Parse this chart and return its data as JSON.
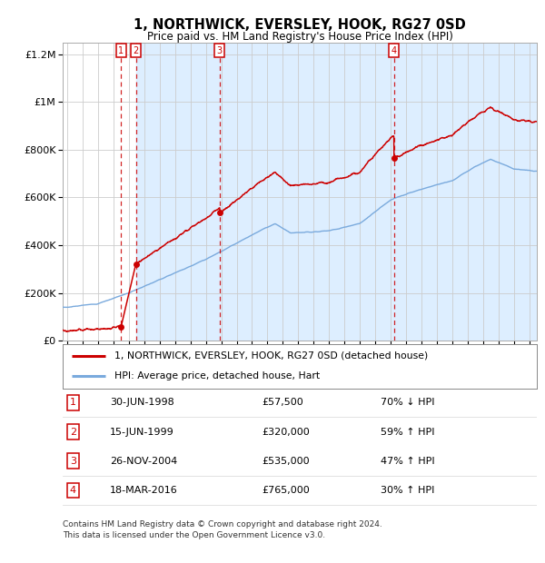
{
  "title": "1, NORTHWICK, EVERSLEY, HOOK, RG27 0SD",
  "subtitle": "Price paid vs. HM Land Registry's House Price Index (HPI)",
  "property_label": "1, NORTHWICK, EVERSLEY, HOOK, RG27 0SD (detached house)",
  "hpi_label": "HPI: Average price, detached house, Hart",
  "sale_points": [
    {
      "num": 1,
      "date_val": 1998.49,
      "price": 57500,
      "label": "30-JUN-1998",
      "price_str": "£57,500",
      "hpi_rel": "70% ↓ HPI"
    },
    {
      "num": 2,
      "date_val": 1999.45,
      "price": 320000,
      "label": "15-JUN-1999",
      "price_str": "£320,000",
      "hpi_rel": "59% ↑ HPI"
    },
    {
      "num": 3,
      "date_val": 2004.9,
      "price": 535000,
      "label": "26-NOV-2004",
      "price_str": "£535,000",
      "hpi_rel": "47% ↑ HPI"
    },
    {
      "num": 4,
      "date_val": 2016.21,
      "price": 765000,
      "label": "18-MAR-2016",
      "price_str": "£765,000",
      "hpi_rel": "30% ↑ HPI"
    }
  ],
  "property_color": "#cc0000",
  "hpi_color": "#7aaadd",
  "span_color": "#ddeeff",
  "plot_bg": "#ffffff",
  "grid_color": "#cccccc",
  "footer": "Contains HM Land Registry data © Crown copyright and database right 2024.\nThis data is licensed under the Open Government Licence v3.0.",
  "ylim": [
    0,
    1250000
  ],
  "xlim_start": 1994.7,
  "xlim_end": 2025.5,
  "yticks": [
    0,
    200000,
    400000,
    600000,
    800000,
    1000000,
    1200000
  ],
  "ylabels": [
    "£0",
    "£200K",
    "£400K",
    "£600K",
    "£800K",
    "£1M",
    "£1.2M"
  ]
}
